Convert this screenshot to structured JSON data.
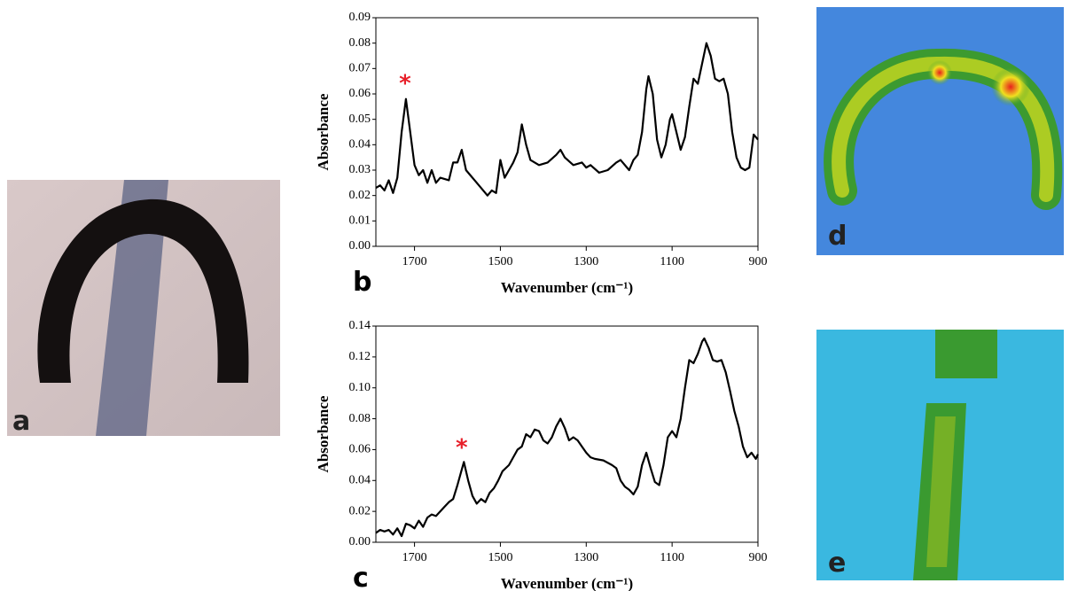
{
  "image_panels": [
    {
      "label": "a"
    },
    {
      "label": "d"
    },
    {
      "label": "e"
    }
  ],
  "chart_data": [
    {
      "type": "line",
      "panel_label": "b",
      "xlabel": "Wavenumber (cm⁻¹)",
      "ylabel": "Absorbance",
      "xlim": [
        1790,
        900
      ],
      "xticks": [
        1700,
        1500,
        1300,
        1100,
        900
      ],
      "ylim": [
        0,
        0.09
      ],
      "yticks": [
        {
          "value": 0,
          "label": "0.00"
        },
        0.01,
        0.02,
        0.03,
        0.04,
        0.05,
        0.06,
        0.07,
        0.08,
        0.09
      ],
      "annotation": {
        "text": "*",
        "x": 1722,
        "y": 0.064,
        "color": "#e8202a"
      },
      "series": [
        {
          "color": "#000000",
          "x": [
            1790,
            1780,
            1770,
            1760,
            1750,
            1740,
            1730,
            1720,
            1710,
            1700,
            1690,
            1680,
            1670,
            1660,
            1650,
            1640,
            1620,
            1610,
            1600,
            1590,
            1580,
            1570,
            1560,
            1540,
            1530,
            1520,
            1510,
            1500,
            1490,
            1480,
            1470,
            1460,
            1450,
            1440,
            1430,
            1410,
            1390,
            1370,
            1360,
            1350,
            1330,
            1310,
            1300,
            1290,
            1270,
            1250,
            1230,
            1220,
            1200,
            1190,
            1180,
            1170,
            1160,
            1155,
            1145,
            1135,
            1125,
            1115,
            1105,
            1100,
            1090,
            1080,
            1070,
            1060,
            1050,
            1040,
            1030,
            1020,
            1010,
            1000,
            990,
            980,
            970,
            960,
            950,
            940,
            930,
            920,
            910,
            900
          ],
          "values": [
            0.023,
            0.024,
            0.022,
            0.026,
            0.021,
            0.027,
            0.045,
            0.058,
            0.045,
            0.032,
            0.028,
            0.03,
            0.025,
            0.03,
            0.025,
            0.027,
            0.026,
            0.033,
            0.033,
            0.038,
            0.03,
            0.028,
            0.026,
            0.022,
            0.02,
            0.022,
            0.021,
            0.034,
            0.027,
            0.03,
            0.033,
            0.037,
            0.048,
            0.04,
            0.034,
            0.032,
            0.033,
            0.036,
            0.038,
            0.035,
            0.032,
            0.033,
            0.031,
            0.032,
            0.029,
            0.03,
            0.033,
            0.034,
            0.03,
            0.034,
            0.036,
            0.045,
            0.062,
            0.067,
            0.06,
            0.042,
            0.035,
            0.04,
            0.05,
            0.052,
            0.045,
            0.038,
            0.043,
            0.055,
            0.066,
            0.064,
            0.072,
            0.08,
            0.075,
            0.066,
            0.065,
            0.066,
            0.06,
            0.045,
            0.035,
            0.031,
            0.03,
            0.031,
            0.044,
            0.042
          ]
        }
      ]
    },
    {
      "type": "line",
      "panel_label": "c",
      "xlabel": "Wavenumber (cm⁻¹)",
      "ylabel": "Absorbance",
      "xlim": [
        1790,
        900
      ],
      "xticks": [
        1700,
        1500,
        1300,
        1100,
        900
      ],
      "ylim": [
        0,
        0.14
      ],
      "yticks": [
        {
          "value": 0,
          "label": "0.00"
        },
        0.02,
        0.04,
        0.06,
        0.08,
        {
          "value": 0.1,
          "label": "0.10"
        },
        0.12,
        0.14
      ],
      "annotation": {
        "text": "*",
        "x": 1590,
        "y": 0.061,
        "color": "#e8202a"
      },
      "series": [
        {
          "color": "#000000",
          "x": [
            1790,
            1780,
            1770,
            1760,
            1750,
            1740,
            1730,
            1720,
            1710,
            1700,
            1690,
            1680,
            1670,
            1660,
            1650,
            1640,
            1630,
            1620,
            1610,
            1600,
            1590,
            1585,
            1575,
            1565,
            1555,
            1545,
            1535,
            1525,
            1515,
            1505,
            1495,
            1480,
            1470,
            1460,
            1450,
            1440,
            1430,
            1420,
            1410,
            1400,
            1390,
            1380,
            1370,
            1360,
            1350,
            1340,
            1330,
            1320,
            1310,
            1300,
            1290,
            1280,
            1260,
            1240,
            1230,
            1220,
            1210,
            1200,
            1190,
            1180,
            1170,
            1160,
            1150,
            1140,
            1130,
            1120,
            1110,
            1100,
            1090,
            1080,
            1070,
            1060,
            1050,
            1040,
            1030,
            1025,
            1015,
            1005,
            995,
            985,
            975,
            965,
            955,
            945,
            935,
            925,
            915,
            905,
            900
          ],
          "values": [
            0.006,
            0.008,
            0.007,
            0.008,
            0.005,
            0.009,
            0.004,
            0.012,
            0.011,
            0.009,
            0.014,
            0.01,
            0.016,
            0.018,
            0.017,
            0.02,
            0.023,
            0.026,
            0.028,
            0.037,
            0.047,
            0.052,
            0.04,
            0.03,
            0.025,
            0.028,
            0.026,
            0.032,
            0.035,
            0.04,
            0.046,
            0.05,
            0.055,
            0.06,
            0.062,
            0.07,
            0.068,
            0.073,
            0.072,
            0.066,
            0.064,
            0.068,
            0.075,
            0.08,
            0.074,
            0.066,
            0.068,
            0.066,
            0.062,
            0.058,
            0.055,
            0.054,
            0.053,
            0.05,
            0.048,
            0.04,
            0.036,
            0.034,
            0.031,
            0.036,
            0.05,
            0.058,
            0.048,
            0.039,
            0.037,
            0.05,
            0.068,
            0.072,
            0.068,
            0.08,
            0.1,
            0.118,
            0.116,
            0.122,
            0.13,
            0.132,
            0.126,
            0.118,
            0.117,
            0.118,
            0.11,
            0.098,
            0.085,
            0.075,
            0.062,
            0.055,
            0.058,
            0.054,
            0.057
          ]
        }
      ]
    }
  ]
}
